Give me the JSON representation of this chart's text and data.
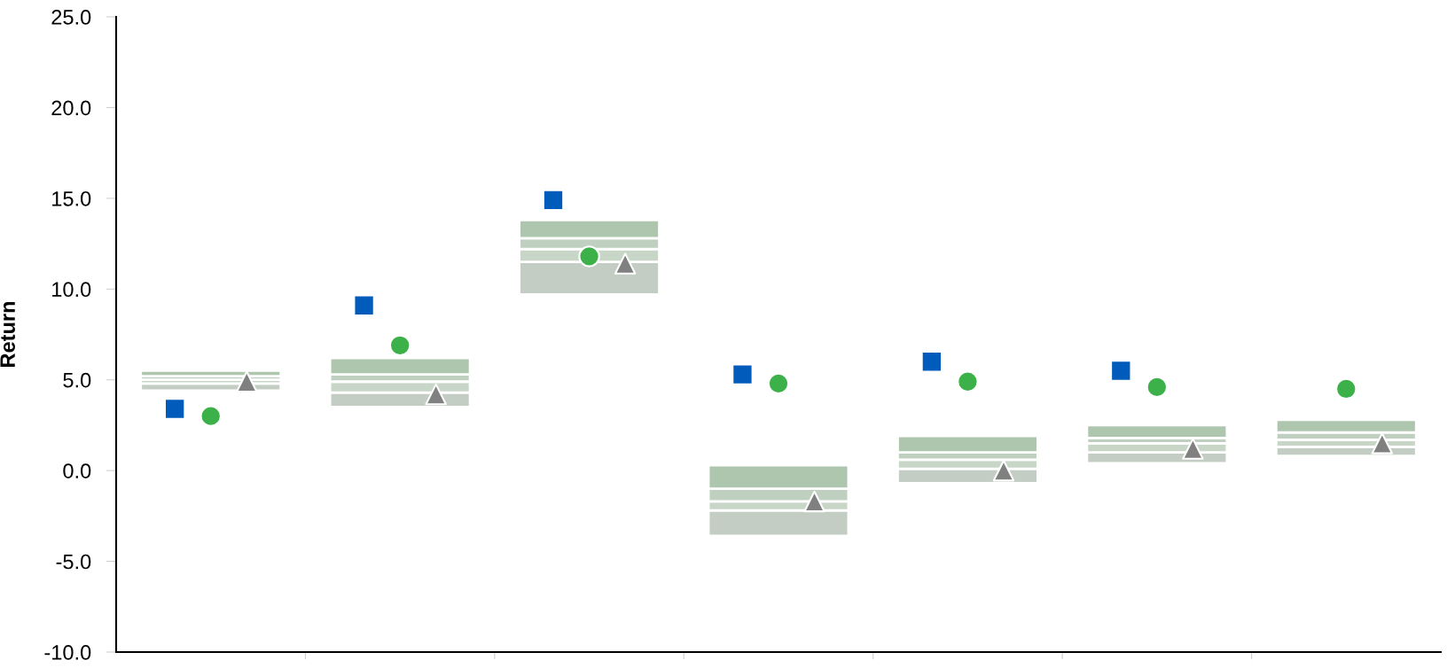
{
  "chart_data": {
    "type": "bar",
    "ylabel": "Return",
    "categories": [
      null,
      null,
      null,
      null,
      null,
      null,
      null
    ],
    "series": [
      {
        "color": "#c3cdc3",
        "base": [
          4.4,
          3.5,
          9.7,
          -3.6,
          -0.7,
          0.4,
          0.8
        ],
        "values": [
          0.4,
          0.8,
          1.8,
          1.4,
          0.8,
          0.6,
          0.5
        ]
      },
      {
        "color": "#c8d6c8",
        "base": [
          4.8,
          4.3,
          11.5,
          -2.2,
          0.1,
          1.0,
          1.3
        ],
        "values": [
          0.2,
          0.6,
          0.7,
          0.5,
          0.5,
          0.5,
          0.4
        ]
      },
      {
        "color": "#c0d0c0",
        "base": [
          5.0,
          4.9,
          12.2,
          -1.7,
          0.6,
          1.5,
          1.7
        ],
        "values": [
          0.2,
          0.4,
          0.6,
          0.7,
          0.4,
          0.3,
          0.4
        ]
      },
      {
        "color": "#aec6ae",
        "base": [
          5.2,
          5.3,
          12.8,
          -1.0,
          1.0,
          1.8,
          2.1
        ],
        "values": [
          0.3,
          0.9,
          1.0,
          1.3,
          0.9,
          0.7,
          0.7
        ]
      },
      {
        "type": "scatter",
        "marker": "square",
        "color": "#005bbb",
        "values": [
          3.4,
          9.1,
          14.9,
          5.3,
          6.0,
          5.5,
          null
        ]
      },
      {
        "type": "scatter",
        "marker": "circle",
        "color": "#3cb049",
        "values": [
          3.0,
          6.9,
          11.8,
          4.8,
          4.9,
          4.6,
          4.5
        ]
      },
      {
        "type": "scatter",
        "marker": "triangle",
        "color": "#808080",
        "values": [
          4.9,
          4.2,
          11.4,
          -1.7,
          0.0,
          1.2,
          1.5
        ]
      }
    ],
    "ylim": [
      -10,
      25
    ],
    "yticks": [
      {
        "value": -10,
        "label": "-10.0"
      },
      {
        "value": -5,
        "label": "-5.0"
      },
      {
        "value": 0,
        "label": "0.0"
      },
      {
        "value": 5,
        "label": "5.0"
      },
      {
        "value": 10,
        "label": "10.0"
      },
      {
        "value": 15,
        "label": "15.0"
      },
      {
        "value": 20,
        "label": "20.0"
      },
      {
        "value": 25,
        "label": "25.0"
      }
    ],
    "tick_labels": "y",
    "grid": false
  }
}
